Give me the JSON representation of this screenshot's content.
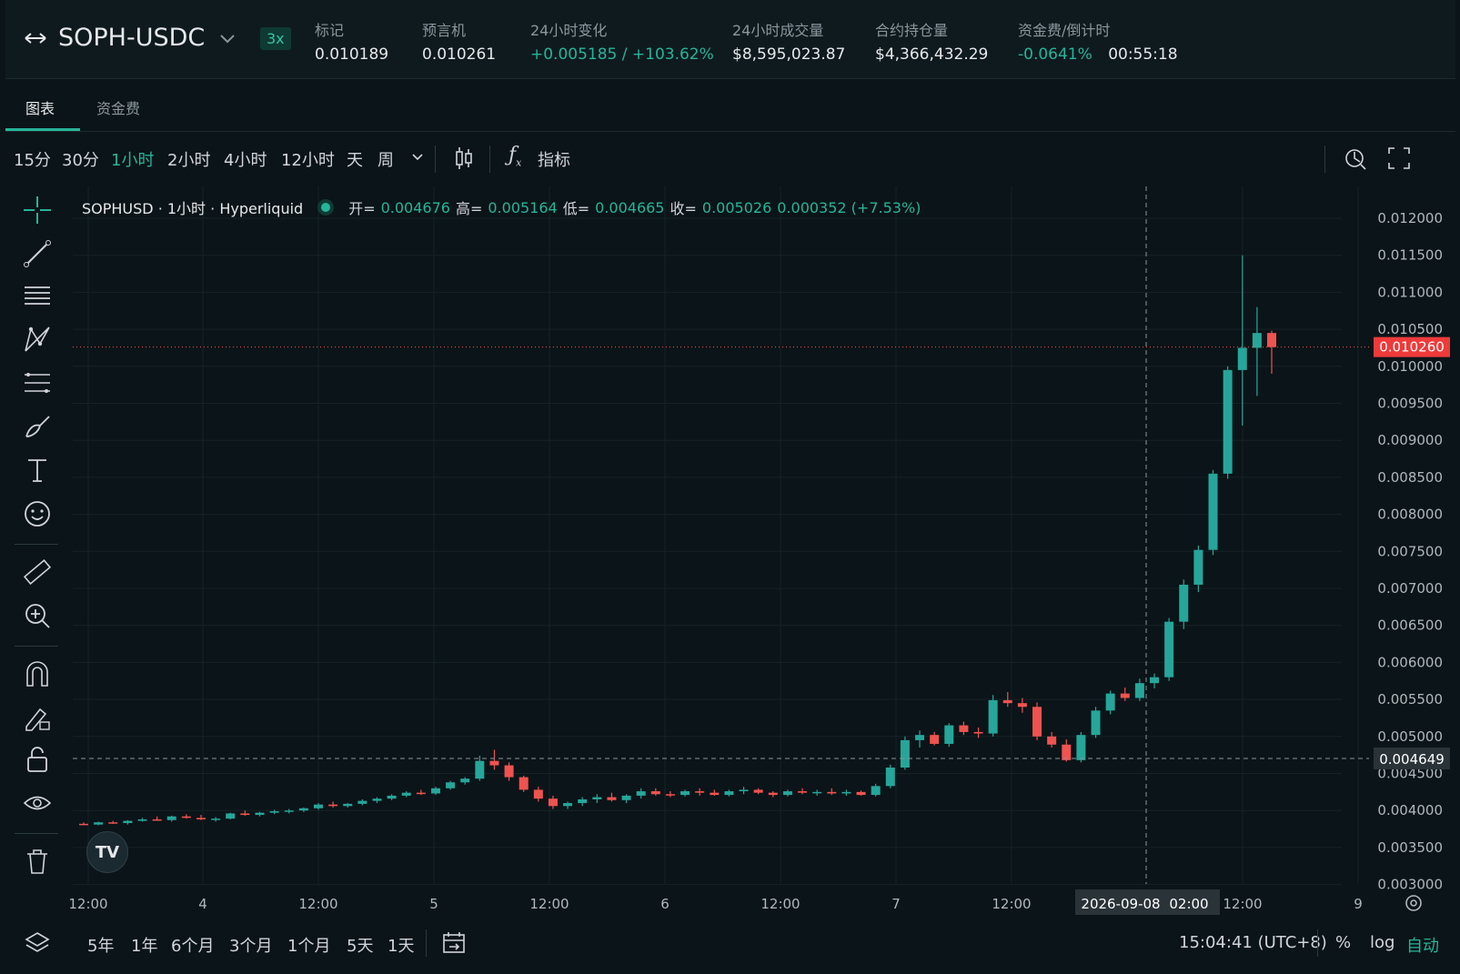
{
  "header": {
    "pair": "SOPH-USDC",
    "leverage": "3x",
    "stats": [
      {
        "label": "标记",
        "value": "0.010189",
        "green": false
      },
      {
        "label": "预言机",
        "value": "0.010261",
        "green": false
      },
      {
        "label": "24小时变化",
        "value": "+0.005185 / +103.62%",
        "green": true
      },
      {
        "label": "24小时成交量",
        "value": "$8,595,023.87",
        "green": false
      },
      {
        "label": "合约持仓量",
        "value": "$4,366,432.29",
        "green": false
      },
      {
        "label": "资金费/倒计时",
        "value": "-0.0641%",
        "green": true,
        "extra": "00:55:18"
      }
    ]
  },
  "tabs": [
    "图表",
    "资金费"
  ],
  "timeframes": [
    "15分",
    "30分",
    "1小时",
    "2小时",
    "4小时",
    "12小时",
    "天",
    "周"
  ],
  "active_timeframe": "1小时",
  "indicator_label": "指标",
  "legend": {
    "name": "SOPHUSD · 1小时 · Hyperliquid",
    "open_label": "开=",
    "open": "0.004676",
    "high_label": "高=",
    "high": "0.005164",
    "low_label": "低=",
    "low": "0.004665",
    "close_label": "收=",
    "close": "0.005026",
    "change": "0.000352 (+7.53%)"
  },
  "ranges": [
    "5年",
    "1年",
    "6个月",
    "3个月",
    "1个月",
    "5天",
    "1天"
  ],
  "clock": "15:04:41 (UTC+8)",
  "scale_buttons": [
    "%",
    "log",
    "自动"
  ],
  "colors": {
    "up": "#26a69a",
    "down": "#ef5350",
    "accent": "#26b59a"
  },
  "icons": [
    "crosshair-icon",
    "trend-line-icon",
    "horizontal-lines-icon",
    "pattern-icon",
    "fib-icon",
    "brush-icon",
    "text-icon",
    "emoji-icon",
    "ruler-icon",
    "zoom-in-icon",
    "magnet-icon",
    "lock-pencil-icon",
    "unlock-icon",
    "eye-icon",
    "trash-icon",
    "layers-icon",
    "compare-icon",
    "goto-date-icon",
    "settings-icon",
    "fullscreen-icon",
    "indicator-icon"
  ],
  "chart_data": {
    "type": "candlestick",
    "y_ticks": [
      "0.012000",
      "0.011500",
      "0.011000",
      "0.010500",
      "0.010000",
      "0.009500",
      "0.009000",
      "0.008500",
      "0.008000",
      "0.007500",
      "0.007000",
      "0.006500",
      "0.006000",
      "0.005500",
      "0.005000",
      "0.004500",
      "0.004000",
      "0.003500",
      "0.003000"
    ],
    "x_ticks": [
      "12:00",
      "4",
      "12:00",
      "5",
      "12:00",
      "6",
      "12:00",
      "7",
      "12:00",
      "12:00",
      "9"
    ],
    "crosshair_label": "2026-09-08",
    "crosshair_time": "02:00",
    "last_price_label": "0.010260",
    "crosshair_price_label": "0.004649",
    "ylim": [
      0.003,
      0.0122
    ],
    "candles": [
      [
        0.00382,
        0.00384,
        0.0038,
        0.00381
      ],
      [
        0.00381,
        0.00385,
        0.0038,
        0.00384
      ],
      [
        0.00384,
        0.00386,
        0.00382,
        0.00383
      ],
      [
        0.00383,
        0.00387,
        0.00381,
        0.00386
      ],
      [
        0.00386,
        0.0039,
        0.00385,
        0.00388
      ],
      [
        0.00388,
        0.00392,
        0.00386,
        0.00387
      ],
      [
        0.00387,
        0.00393,
        0.00385,
        0.00392
      ],
      [
        0.00392,
        0.00395,
        0.00389,
        0.0039
      ],
      [
        0.0039,
        0.00394,
        0.00387,
        0.00388
      ],
      [
        0.00388,
        0.00391,
        0.00385,
        0.00389
      ],
      [
        0.00389,
        0.00397,
        0.00388,
        0.00396
      ],
      [
        0.00396,
        0.004,
        0.00393,
        0.00394
      ],
      [
        0.00394,
        0.00398,
        0.00392,
        0.00397
      ],
      [
        0.00397,
        0.00401,
        0.00395,
        0.00399
      ],
      [
        0.00399,
        0.00402,
        0.00396,
        0.004
      ],
      [
        0.004,
        0.00404,
        0.00398,
        0.00403
      ],
      [
        0.00403,
        0.0041,
        0.00401,
        0.00408
      ],
      [
        0.00408,
        0.00412,
        0.00404,
        0.00406
      ],
      [
        0.00406,
        0.0041,
        0.00404,
        0.00409
      ],
      [
        0.00409,
        0.00415,
        0.00407,
        0.00413
      ],
      [
        0.00413,
        0.00418,
        0.0041,
        0.00416
      ],
      [
        0.00416,
        0.00422,
        0.00414,
        0.0042
      ],
      [
        0.0042,
        0.00426,
        0.00418,
        0.00424
      ],
      [
        0.00424,
        0.00428,
        0.00421,
        0.00423
      ],
      [
        0.00423,
        0.00432,
        0.00421,
        0.0043
      ],
      [
        0.0043,
        0.0044,
        0.00428,
        0.00438
      ],
      [
        0.00438,
        0.00445,
        0.00435,
        0.00443
      ],
      [
        0.00443,
        0.00474,
        0.0044,
        0.00467
      ],
      [
        0.00467,
        0.00482,
        0.00455,
        0.00461
      ],
      [
        0.00461,
        0.00465,
        0.0044,
        0.00445
      ],
      [
        0.00445,
        0.00447,
        0.00425,
        0.00428
      ],
      [
        0.00428,
        0.00432,
        0.00412,
        0.00416
      ],
      [
        0.00416,
        0.0042,
        0.00402,
        0.00406
      ],
      [
        0.00406,
        0.00412,
        0.00402,
        0.0041
      ],
      [
        0.0041,
        0.00418,
        0.00406,
        0.00415
      ],
      [
        0.00415,
        0.00422,
        0.0041,
        0.00418
      ],
      [
        0.00418,
        0.00424,
        0.00412,
        0.00414
      ],
      [
        0.00414,
        0.00422,
        0.0041,
        0.0042
      ],
      [
        0.0042,
        0.0043,
        0.00416,
        0.00426
      ],
      [
        0.00426,
        0.0043,
        0.0042,
        0.00422
      ],
      [
        0.00422,
        0.00426,
        0.00418,
        0.00421
      ],
      [
        0.00421,
        0.00428,
        0.00419,
        0.00426
      ],
      [
        0.00426,
        0.0043,
        0.0042,
        0.00424
      ],
      [
        0.00424,
        0.00428,
        0.0042,
        0.00421
      ],
      [
        0.00421,
        0.00428,
        0.00419,
        0.00426
      ],
      [
        0.00426,
        0.00432,
        0.00422,
        0.00428
      ],
      [
        0.00428,
        0.0043,
        0.00422,
        0.00424
      ],
      [
        0.00424,
        0.00426,
        0.00418,
        0.00421
      ],
      [
        0.00421,
        0.00428,
        0.00419,
        0.00426
      ],
      [
        0.00426,
        0.0043,
        0.00422,
        0.00424
      ],
      [
        0.00424,
        0.00428,
        0.0042,
        0.00425
      ],
      [
        0.00425,
        0.0043,
        0.00421,
        0.00423
      ],
      [
        0.00423,
        0.00428,
        0.0042,
        0.00425
      ],
      [
        0.00425,
        0.00427,
        0.0042,
        0.00421
      ],
      [
        0.00421,
        0.00436,
        0.00419,
        0.00433
      ],
      [
        0.00433,
        0.00462,
        0.0043,
        0.00458
      ],
      [
        0.00458,
        0.005,
        0.00455,
        0.00495
      ],
      [
        0.00495,
        0.00508,
        0.00485,
        0.00502
      ],
      [
        0.00502,
        0.00506,
        0.00488,
        0.0049
      ],
      [
        0.0049,
        0.00518,
        0.00486,
        0.00515
      ],
      [
        0.00515,
        0.0052,
        0.00502,
        0.00506
      ],
      [
        0.00506,
        0.00512,
        0.00498,
        0.00504
      ],
      [
        0.00504,
        0.00556,
        0.005,
        0.00549
      ],
      [
        0.00549,
        0.0056,
        0.0054,
        0.00545
      ],
      [
        0.00545,
        0.00552,
        0.00532,
        0.0054
      ],
      [
        0.0054,
        0.00546,
        0.00495,
        0.005
      ],
      [
        0.005,
        0.00506,
        0.00485,
        0.00489
      ],
      [
        0.00489,
        0.00496,
        0.00466,
        0.00468
      ],
      [
        0.00468,
        0.00506,
        0.00465,
        0.00502
      ],
      [
        0.00502,
        0.0054,
        0.00498,
        0.00535
      ],
      [
        0.00535,
        0.00562,
        0.0053,
        0.00558
      ],
      [
        0.00558,
        0.00566,
        0.00548,
        0.00552
      ],
      [
        0.00552,
        0.00578,
        0.00548,
        0.00572
      ],
      [
        0.00572,
        0.00585,
        0.00565,
        0.0058
      ],
      [
        0.0058,
        0.0066,
        0.00575,
        0.00655
      ],
      [
        0.00655,
        0.00712,
        0.00645,
        0.00705
      ],
      [
        0.00705,
        0.00758,
        0.00695,
        0.00752
      ],
      [
        0.00752,
        0.0086,
        0.00745,
        0.00855
      ],
      [
        0.00855,
        0.01,
        0.00848,
        0.00995
      ],
      [
        0.00995,
        0.0115,
        0.0092,
        0.01025
      ],
      [
        0.01025,
        0.0108,
        0.0096,
        0.01045
      ],
      [
        0.01045,
        0.01048,
        0.0099,
        0.01026
      ]
    ]
  }
}
